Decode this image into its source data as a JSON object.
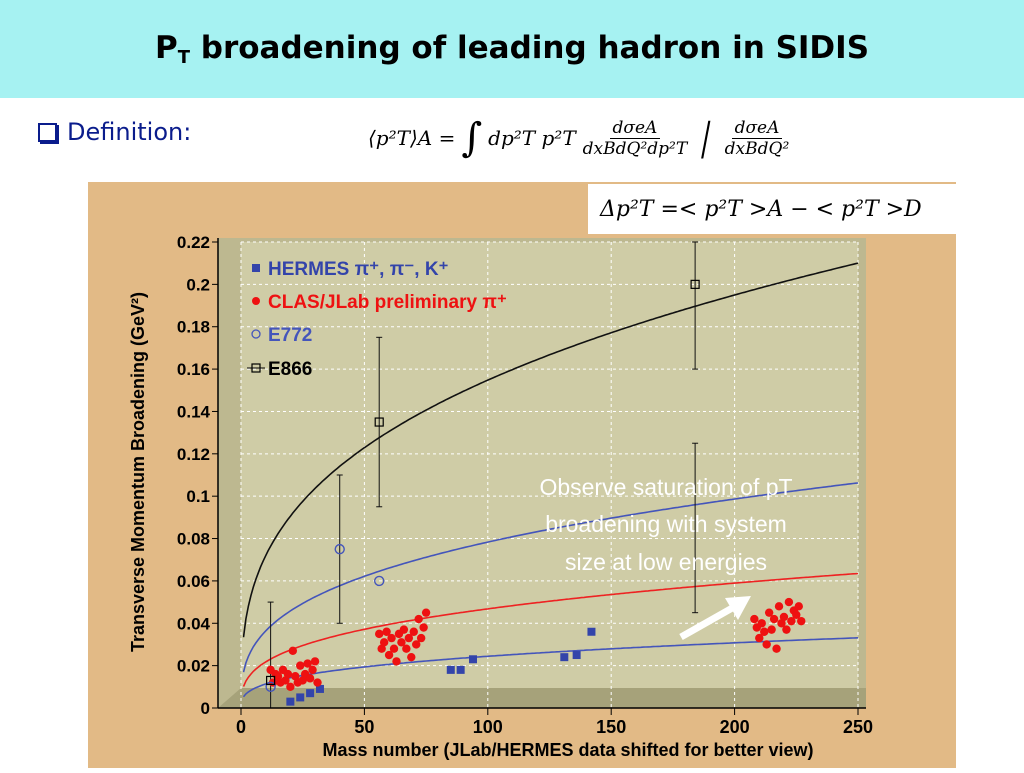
{
  "slide": {
    "title_main": "P",
    "title_sub": "T",
    "title_rest": " broadening of leading hadron in SIDIS",
    "bullet_label": "Definition:",
    "formula_lhs": "⟨p²T⟩A =",
    "formula_integral": "∫",
    "formula_integrand": "dp²T p²T",
    "formula_num1": "dσeA",
    "formula_den1": "dxBdQ²dp²T",
    "formula_num2": "dσeA",
    "formula_den2": "dxBdQ²",
    "delta_formula": "Δp²T =< p²T >A − < p²T >D"
  },
  "chart_data": {
    "type": "scatter",
    "xlabel": "Mass number (JLab/HERMES data shifted for better view)",
    "ylabel": "Transverse Momentum Broadening (GeV²)",
    "xlim": [
      0,
      250
    ],
    "ylim": [
      0,
      0.22
    ],
    "xticks": [
      0,
      50,
      100,
      150,
      200,
      250
    ],
    "yticks": [
      0,
      0.02,
      0.04,
      0.06,
      0.08,
      0.1,
      0.12,
      0.14,
      0.16,
      0.18,
      0.2,
      0.22
    ],
    "ytick_labels": [
      "0",
      "0.02",
      "0.04",
      "0.06",
      "0.08",
      "0.1",
      "0.12",
      "0.14",
      "0.16",
      "0.18",
      "0.2",
      "0.22"
    ],
    "legend_position": "top-left",
    "legend": [
      {
        "label": "HERMES π⁺, π⁻, K⁺",
        "color": "#3344aa",
        "marker": "filled-square"
      },
      {
        "label": "CLAS/JLab preliminary π⁺",
        "color": "#ee1111",
        "marker": "filled-circle"
      },
      {
        "label": "E772",
        "color": "#4455bb",
        "marker": "open-circle"
      },
      {
        "label": "E866",
        "color": "#000000",
        "marker": "open-square"
      }
    ],
    "annotation": {
      "lines": [
        "Observe saturation of pT",
        "broadening with system",
        "size at low energies"
      ],
      "color": "#ffffff"
    },
    "series": [
      {
        "name": "HERMES π⁺, π⁻, K⁺",
        "color": "#3344aa",
        "points": [
          [
            20,
            0.003
          ],
          [
            24,
            0.005
          ],
          [
            28,
            0.007
          ],
          [
            32,
            0.009
          ],
          [
            85,
            0.018
          ],
          [
            89,
            0.018
          ],
          [
            94,
            0.023
          ],
          [
            131,
            0.024
          ],
          [
            136,
            0.025
          ],
          [
            142,
            0.036
          ]
        ]
      },
      {
        "name": "CLAS/JLab preliminary π⁺",
        "color": "#ee1111",
        "points": [
          [
            12,
            0.018
          ],
          [
            13,
            0.012
          ],
          [
            14,
            0.016
          ],
          [
            15,
            0.015
          ],
          [
            16,
            0.012
          ],
          [
            17,
            0.018
          ],
          [
            18,
            0.013
          ],
          [
            19,
            0.016
          ],
          [
            20,
            0.01
          ],
          [
            21,
            0.027
          ],
          [
            22,
            0.015
          ],
          [
            23,
            0.012
          ],
          [
            24,
            0.02
          ],
          [
            25,
            0.013
          ],
          [
            26,
            0.016
          ],
          [
            27,
            0.021
          ],
          [
            28,
            0.014
          ],
          [
            29,
            0.018
          ],
          [
            30,
            0.022
          ],
          [
            31,
            0.012
          ],
          [
            56,
            0.035
          ],
          [
            57,
            0.028
          ],
          [
            58,
            0.031
          ],
          [
            59,
            0.036
          ],
          [
            60,
            0.025
          ],
          [
            61,
            0.033
          ],
          [
            62,
            0.028
          ],
          [
            63,
            0.022
          ],
          [
            64,
            0.035
          ],
          [
            65,
            0.031
          ],
          [
            66,
            0.037
          ],
          [
            67,
            0.028
          ],
          [
            68,
            0.033
          ],
          [
            69,
            0.024
          ],
          [
            70,
            0.036
          ],
          [
            71,
            0.03
          ],
          [
            72,
            0.042
          ],
          [
            73,
            0.033
          ],
          [
            74,
            0.038
          ],
          [
            75,
            0.045
          ],
          [
            208,
            0.042
          ],
          [
            209,
            0.038
          ],
          [
            210,
            0.033
          ],
          [
            211,
            0.04
          ],
          [
            212,
            0.036
          ],
          [
            213,
            0.03
          ],
          [
            214,
            0.045
          ],
          [
            215,
            0.037
          ],
          [
            216,
            0.042
          ],
          [
            217,
            0.028
          ],
          [
            218,
            0.048
          ],
          [
            219,
            0.04
          ],
          [
            220,
            0.043
          ],
          [
            221,
            0.037
          ],
          [
            222,
            0.05
          ],
          [
            223,
            0.041
          ],
          [
            224,
            0.046
          ],
          [
            225,
            0.044
          ],
          [
            226,
            0.048
          ],
          [
            227,
            0.041
          ]
        ]
      },
      {
        "name": "E772",
        "color": "#4455bb",
        "points": [
          [
            12,
            0.01
          ],
          [
            40,
            0.075
          ],
          [
            56,
            0.06
          ]
        ]
      },
      {
        "name": "E866",
        "color": "#000000",
        "points": [
          [
            12,
            0.013
          ],
          [
            56,
            0.135
          ],
          [
            184,
            0.2
          ]
        ],
        "errors": [
          [
            0.024,
            0.037
          ],
          [
            0.04,
            0.04
          ],
          [
            0.04,
            0.04
          ]
        ]
      },
      {
        "name": "E772 error bars",
        "color": "#000000",
        "points": [
          [
            40,
            0.075
          ],
          [
            184,
            0.085
          ]
        ],
        "errors": [
          [
            0.035,
            0.035
          ],
          [
            0.04,
            0.04
          ]
        ]
      }
    ],
    "curves": [
      {
        "name": "black fit",
        "color": "#111111",
        "coef": 0.0334,
        "power": 0.333
      },
      {
        "name": "blue fit upper",
        "color": "#4455bb",
        "coef": 0.0169,
        "power": 0.333
      },
      {
        "name": "red fit",
        "color": "#ee2222",
        "coef": 0.0101,
        "power": 0.333
      },
      {
        "name": "blue fit lower",
        "color": "#4455bb",
        "coef": 0.00527,
        "power": 0.333
      }
    ]
  }
}
